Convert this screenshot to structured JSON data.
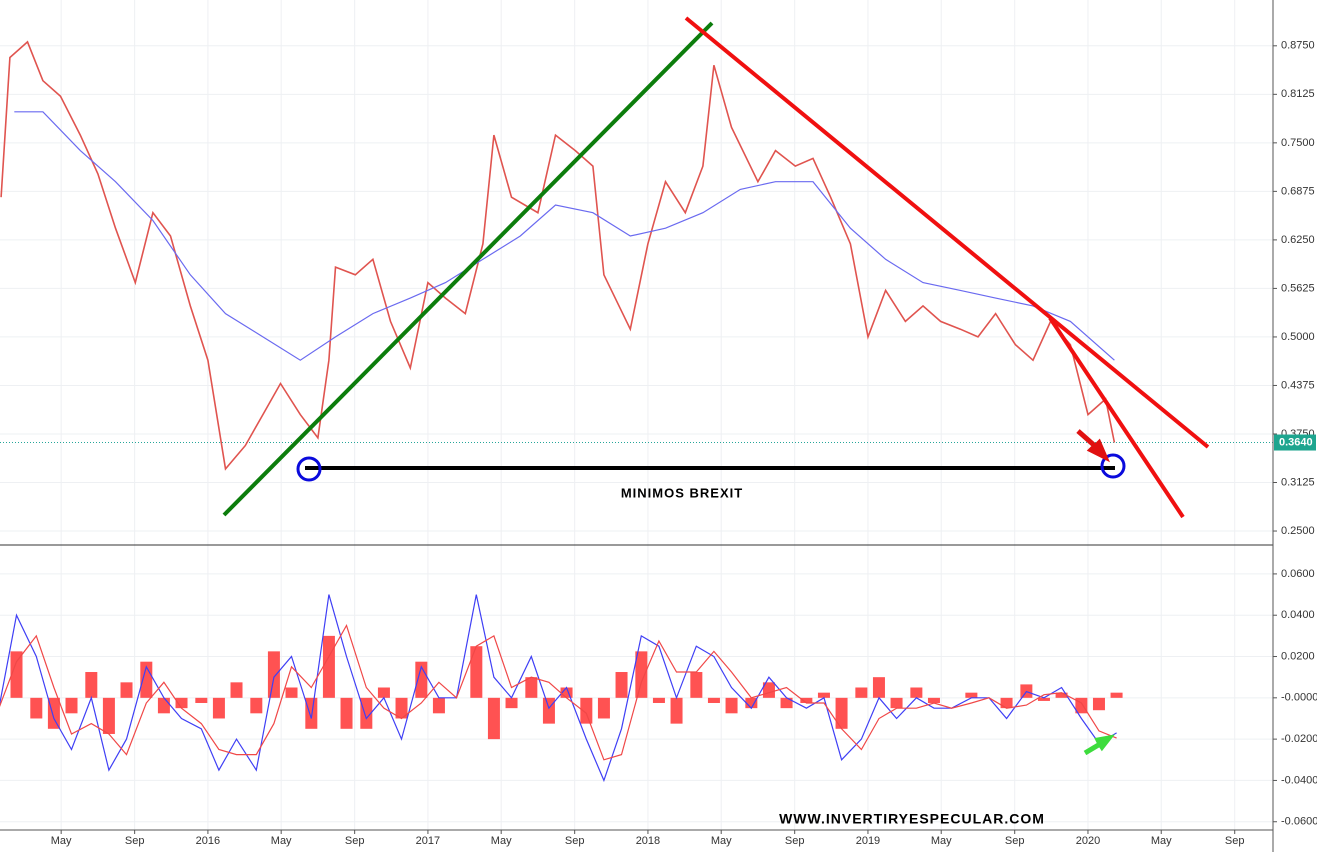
{
  "chart_data": [
    {
      "type": "line",
      "xlim": [
        2015.055,
        2020.841
      ],
      "ylim": [
        0.232,
        0.934
      ],
      "xticks": [
        {
          "value": 2015.333,
          "label": "May"
        },
        {
          "value": 2015.667,
          "label": "Sep"
        },
        {
          "value": 2016,
          "label": "2016"
        },
        {
          "value": 2016.333,
          "label": "May"
        },
        {
          "value": 2016.667,
          "label": "Sep"
        },
        {
          "value": 2017,
          "label": "2017"
        },
        {
          "value": 2017.333,
          "label": "May"
        },
        {
          "value": 2017.667,
          "label": "Sep"
        },
        {
          "value": 2018,
          "label": "2018"
        },
        {
          "value": 2018.333,
          "label": "May"
        },
        {
          "value": 2018.667,
          "label": "Sep"
        },
        {
          "value": 2019,
          "label": "2019"
        },
        {
          "value": 2019.333,
          "label": "May"
        },
        {
          "value": 2019.667,
          "label": "Sep"
        },
        {
          "value": 2020,
          "label": "2020"
        },
        {
          "value": 2020.333,
          "label": "May"
        },
        {
          "value": 2020.667,
          "label": "Sep"
        }
      ],
      "yticks": [
        {
          "value": 0.25,
          "label": "0.2500"
        },
        {
          "value": 0.3125,
          "label": "0.3125"
        },
        {
          "value": 0.375,
          "label": "0.3750"
        },
        {
          "value": 0.4375,
          "label": "0.4375"
        },
        {
          "value": 0.5,
          "label": "0.5000"
        },
        {
          "value": 0.5625,
          "label": "0.5625"
        },
        {
          "value": 0.625,
          "label": "0.6250"
        },
        {
          "value": 0.6875,
          "label": "0.6875"
        },
        {
          "value": 0.75,
          "label": "0.7500"
        },
        {
          "value": 0.8125,
          "label": "0.8125"
        },
        {
          "value": 0.875,
          "label": "0.8750"
        }
      ],
      "grid": true,
      "last_price": {
        "value": 0.364,
        "label": "0.3640"
      },
      "annotation": "MINIMOS BREXIT",
      "series": [
        {
          "color": "#e0544f",
          "x": [
            2015.06,
            2015.1,
            2015.18,
            2015.25,
            2015.33,
            2015.42,
            2015.5,
            2015.58,
            2015.67,
            2015.75,
            2015.83,
            2015.92,
            2016.0,
            2016.08,
            2016.17,
            2016.25,
            2016.33,
            2016.42,
            2016.5,
            2016.55,
            2016.58,
            2016.67,
            2016.75,
            2016.83,
            2016.92,
            2017.0,
            2017.08,
            2017.17,
            2017.25,
            2017.3,
            2017.38,
            2017.5,
            2017.58,
            2017.67,
            2017.75,
            2017.8,
            2017.92,
            2018.0,
            2018.08,
            2018.17,
            2018.25,
            2018.3,
            2018.38,
            2018.5,
            2018.58,
            2018.67,
            2018.75,
            2018.83,
            2018.92,
            2019.0,
            2019.08,
            2019.17,
            2019.25,
            2019.33,
            2019.42,
            2019.5,
            2019.58,
            2019.67,
            2019.75,
            2019.83,
            2019.92,
            2020.0,
            2020.08,
            2020.12
          ],
          "values": [
            0.68,
            0.86,
            0.88,
            0.83,
            0.81,
            0.76,
            0.71,
            0.64,
            0.57,
            0.66,
            0.63,
            0.54,
            0.47,
            0.33,
            0.36,
            0.4,
            0.44,
            0.4,
            0.37,
            0.47,
            0.59,
            0.58,
            0.6,
            0.52,
            0.46,
            0.57,
            0.55,
            0.53,
            0.62,
            0.76,
            0.68,
            0.66,
            0.76,
            0.74,
            0.72,
            0.58,
            0.51,
            0.62,
            0.7,
            0.66,
            0.72,
            0.85,
            0.77,
            0.7,
            0.74,
            0.72,
            0.73,
            0.68,
            0.62,
            0.5,
            0.56,
            0.52,
            0.54,
            0.52,
            0.51,
            0.5,
            0.53,
            0.49,
            0.47,
            0.52,
            0.49,
            0.4,
            0.42,
            0.364
          ]
        },
        {
          "color": "#6a6af0",
          "x": [
            2015.12,
            2015.25,
            2015.42,
            2015.58,
            2015.75,
            2015.92,
            2016.08,
            2016.25,
            2016.42,
            2016.58,
            2016.75,
            2016.92,
            2017.08,
            2017.25,
            2017.42,
            2017.58,
            2017.75,
            2017.92,
            2018.08,
            2018.25,
            2018.42,
            2018.58,
            2018.75,
            2018.92,
            2019.08,
            2019.25,
            2019.42,
            2019.58,
            2019.75,
            2019.92,
            2020.12
          ],
          "values": [
            0.79,
            0.79,
            0.74,
            0.7,
            0.65,
            0.58,
            0.53,
            0.5,
            0.47,
            0.5,
            0.53,
            0.55,
            0.57,
            0.6,
            0.63,
            0.67,
            0.66,
            0.63,
            0.64,
            0.66,
            0.69,
            0.7,
            0.7,
            0.64,
            0.6,
            0.57,
            0.56,
            0.55,
            0.54,
            0.52,
            0.47
          ]
        }
      ]
    },
    {
      "type": "line",
      "xlim": [
        2015.055,
        2020.841
      ],
      "ylim": [
        -0.064,
        0.074
      ],
      "yticks": [
        {
          "value": -0.06,
          "label": "-0.0600"
        },
        {
          "value": -0.04,
          "label": "-0.0400"
        },
        {
          "value": -0.02,
          "label": "-0.0200"
        },
        {
          "value": 0,
          "label": "-0.0000"
        },
        {
          "value": 0.02,
          "label": "0.0200"
        },
        {
          "value": 0.04,
          "label": "0.0400"
        },
        {
          "value": 0.06,
          "label": "0.0600"
        }
      ],
      "grid": true,
      "annotation": "WWW.INVERTIRYESPECULAR.COM",
      "x": [
        2015.05,
        2015.13,
        2015.22,
        2015.3,
        2015.38,
        2015.47,
        2015.55,
        2015.63,
        2015.72,
        2015.8,
        2015.88,
        2015.97,
        2016.05,
        2016.13,
        2016.22,
        2016.3,
        2016.38,
        2016.47,
        2016.55,
        2016.63,
        2016.72,
        2016.8,
        2016.88,
        2016.97,
        2017.05,
        2017.13,
        2017.22,
        2017.3,
        2017.38,
        2017.47,
        2017.55,
        2017.63,
        2017.72,
        2017.8,
        2017.88,
        2017.97,
        2018.05,
        2018.13,
        2018.22,
        2018.3,
        2018.38,
        2018.47,
        2018.55,
        2018.63,
        2018.72,
        2018.8,
        2018.88,
        2018.97,
        2019.05,
        2019.13,
        2019.22,
        2019.3,
        2019.38,
        2019.47,
        2019.55,
        2019.63,
        2019.72,
        2019.8,
        2019.88,
        2019.97,
        2020.05,
        2020.13
      ],
      "series": [
        {
          "type": "bar",
          "color": "#ff5252",
          "values": [
            0,
            0.0225,
            -0.01,
            -0.015,
            -0.0075,
            0.0125,
            -0.0175,
            0.0075,
            0.0175,
            -0.0075,
            -0.005,
            -0.0025,
            -0.01,
            0.0075,
            -0.0075,
            0.0225,
            0.005,
            -0.015,
            0.03,
            -0.015,
            -0.015,
            0.005,
            -0.01,
            0.0175,
            -0.0075,
            0,
            0.025,
            -0.02,
            -0.005,
            0.01,
            -0.0125,
            0.005,
            -0.0125,
            -0.01,
            0.0125,
            0.0225,
            -0.0025,
            -0.0125,
            0.0125,
            -0.0025,
            -0.0075,
            -0.005,
            0.0075,
            -0.005,
            -0.0025,
            0.0025,
            -0.015,
            0.005,
            0.01,
            -0.005,
            0.005,
            -0.0025,
            0,
            0.0025,
            0,
            -0.005,
            0.0065,
            -0.0015,
            0.0025,
            -0.0075,
            -0.006,
            0.0025
          ]
        },
        {
          "color": "#3f3ff5",
          "values": [
            -0.005,
            0.04,
            0.02,
            -0.01,
            -0.025,
            0,
            -0.035,
            -0.02,
            0.015,
            0,
            -0.01,
            -0.015,
            -0.035,
            -0.02,
            -0.035,
            0.01,
            0.02,
            -0.01,
            0.05,
            0.02,
            -0.01,
            0,
            -0.02,
            0.015,
            0,
            0,
            0.05,
            0.01,
            0,
            0.02,
            -0.005,
            0.005,
            -0.02,
            -0.04,
            -0.015,
            0.03,
            0.025,
            0,
            0.025,
            0.02,
            0.005,
            -0.005,
            0.01,
            0,
            -0.005,
            0,
            -0.03,
            -0.02,
            0,
            -0.01,
            0,
            -0.005,
            -0.005,
            0,
            0,
            -0.01,
            0.003,
            0,
            0.005,
            -0.01,
            -0.022,
            -0.017
          ]
        },
        {
          "color": "#f04848",
          "values": [
            -0.005,
            0.0175,
            0.03,
            0.005,
            -0.0175,
            -0.0125,
            -0.0175,
            -0.0275,
            -0.0025,
            0.0075,
            -0.005,
            -0.0125,
            -0.025,
            -0.0275,
            -0.0275,
            -0.0125,
            0.015,
            0.005,
            0.02,
            0.035,
            0.005,
            -0.005,
            -0.01,
            -0.0025,
            0.0075,
            0,
            0.025,
            0.03,
            0.005,
            0.01,
            0.0075,
            0,
            -0.0075,
            -0.03,
            -0.0275,
            0.0075,
            0.0275,
            0.0125,
            0.0125,
            0.0225,
            0.0125,
            0,
            0.0025,
            0.005,
            -0.0025,
            -0.0025,
            -0.015,
            -0.025,
            -0.01,
            -0.005,
            -0.005,
            -0.0025,
            -0.005,
            -0.0025,
            0,
            -0.005,
            -0.0035,
            0.0015,
            0.0025,
            -0.0025,
            -0.016,
            -0.0195
          ]
        }
      ]
    }
  ]
}
